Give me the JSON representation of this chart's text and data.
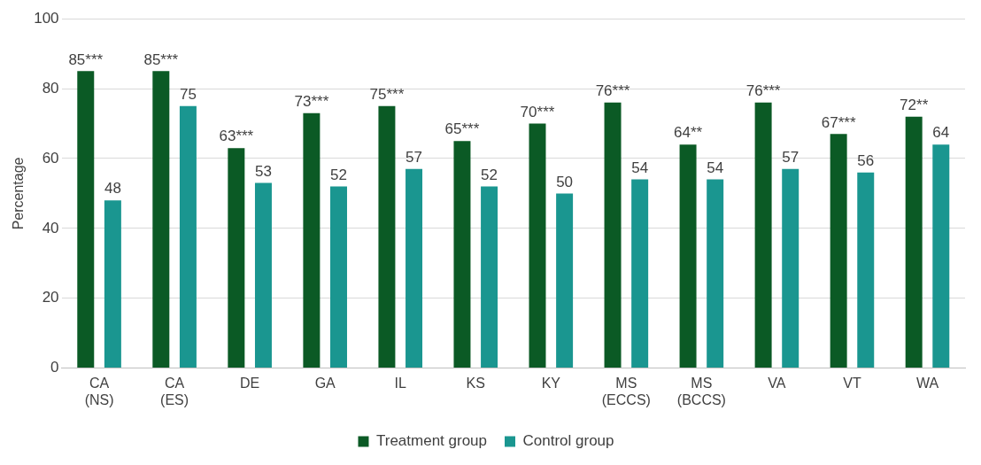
{
  "chart_data": {
    "type": "bar",
    "ylabel": "Percentage",
    "categories": [
      "CA (NS)",
      "CA (ES)",
      "DE",
      "GA",
      "IL",
      "KS",
      "KY",
      "MS (ECCS)",
      "MS (BCCS)",
      "VA",
      "VT",
      "WA"
    ],
    "series": [
      {
        "name": "Treatment group",
        "color": "#0b5a25",
        "values": [
          85,
          85,
          63,
          73,
          75,
          65,
          70,
          76,
          64,
          76,
          67,
          72
        ],
        "value_labels": [
          "85***",
          "85***",
          "63***",
          "73***",
          "75***",
          "65***",
          "70***",
          "76***",
          "64**",
          "76***",
          "67***",
          "72**"
        ]
      },
      {
        "name": "Control group",
        "color": "#1a9690",
        "values": [
          48,
          75,
          53,
          52,
          57,
          52,
          50,
          54,
          54,
          57,
          56,
          64
        ],
        "value_labels": [
          "48",
          "75",
          "53",
          "52",
          "57",
          "52",
          "50",
          "54",
          "54",
          "57",
          "56",
          "64"
        ]
      }
    ],
    "ylim": [
      0,
      100
    ],
    "yticks": [
      0,
      20,
      40,
      60,
      80,
      100
    ],
    "grid": "y",
    "legend": "bottom"
  }
}
